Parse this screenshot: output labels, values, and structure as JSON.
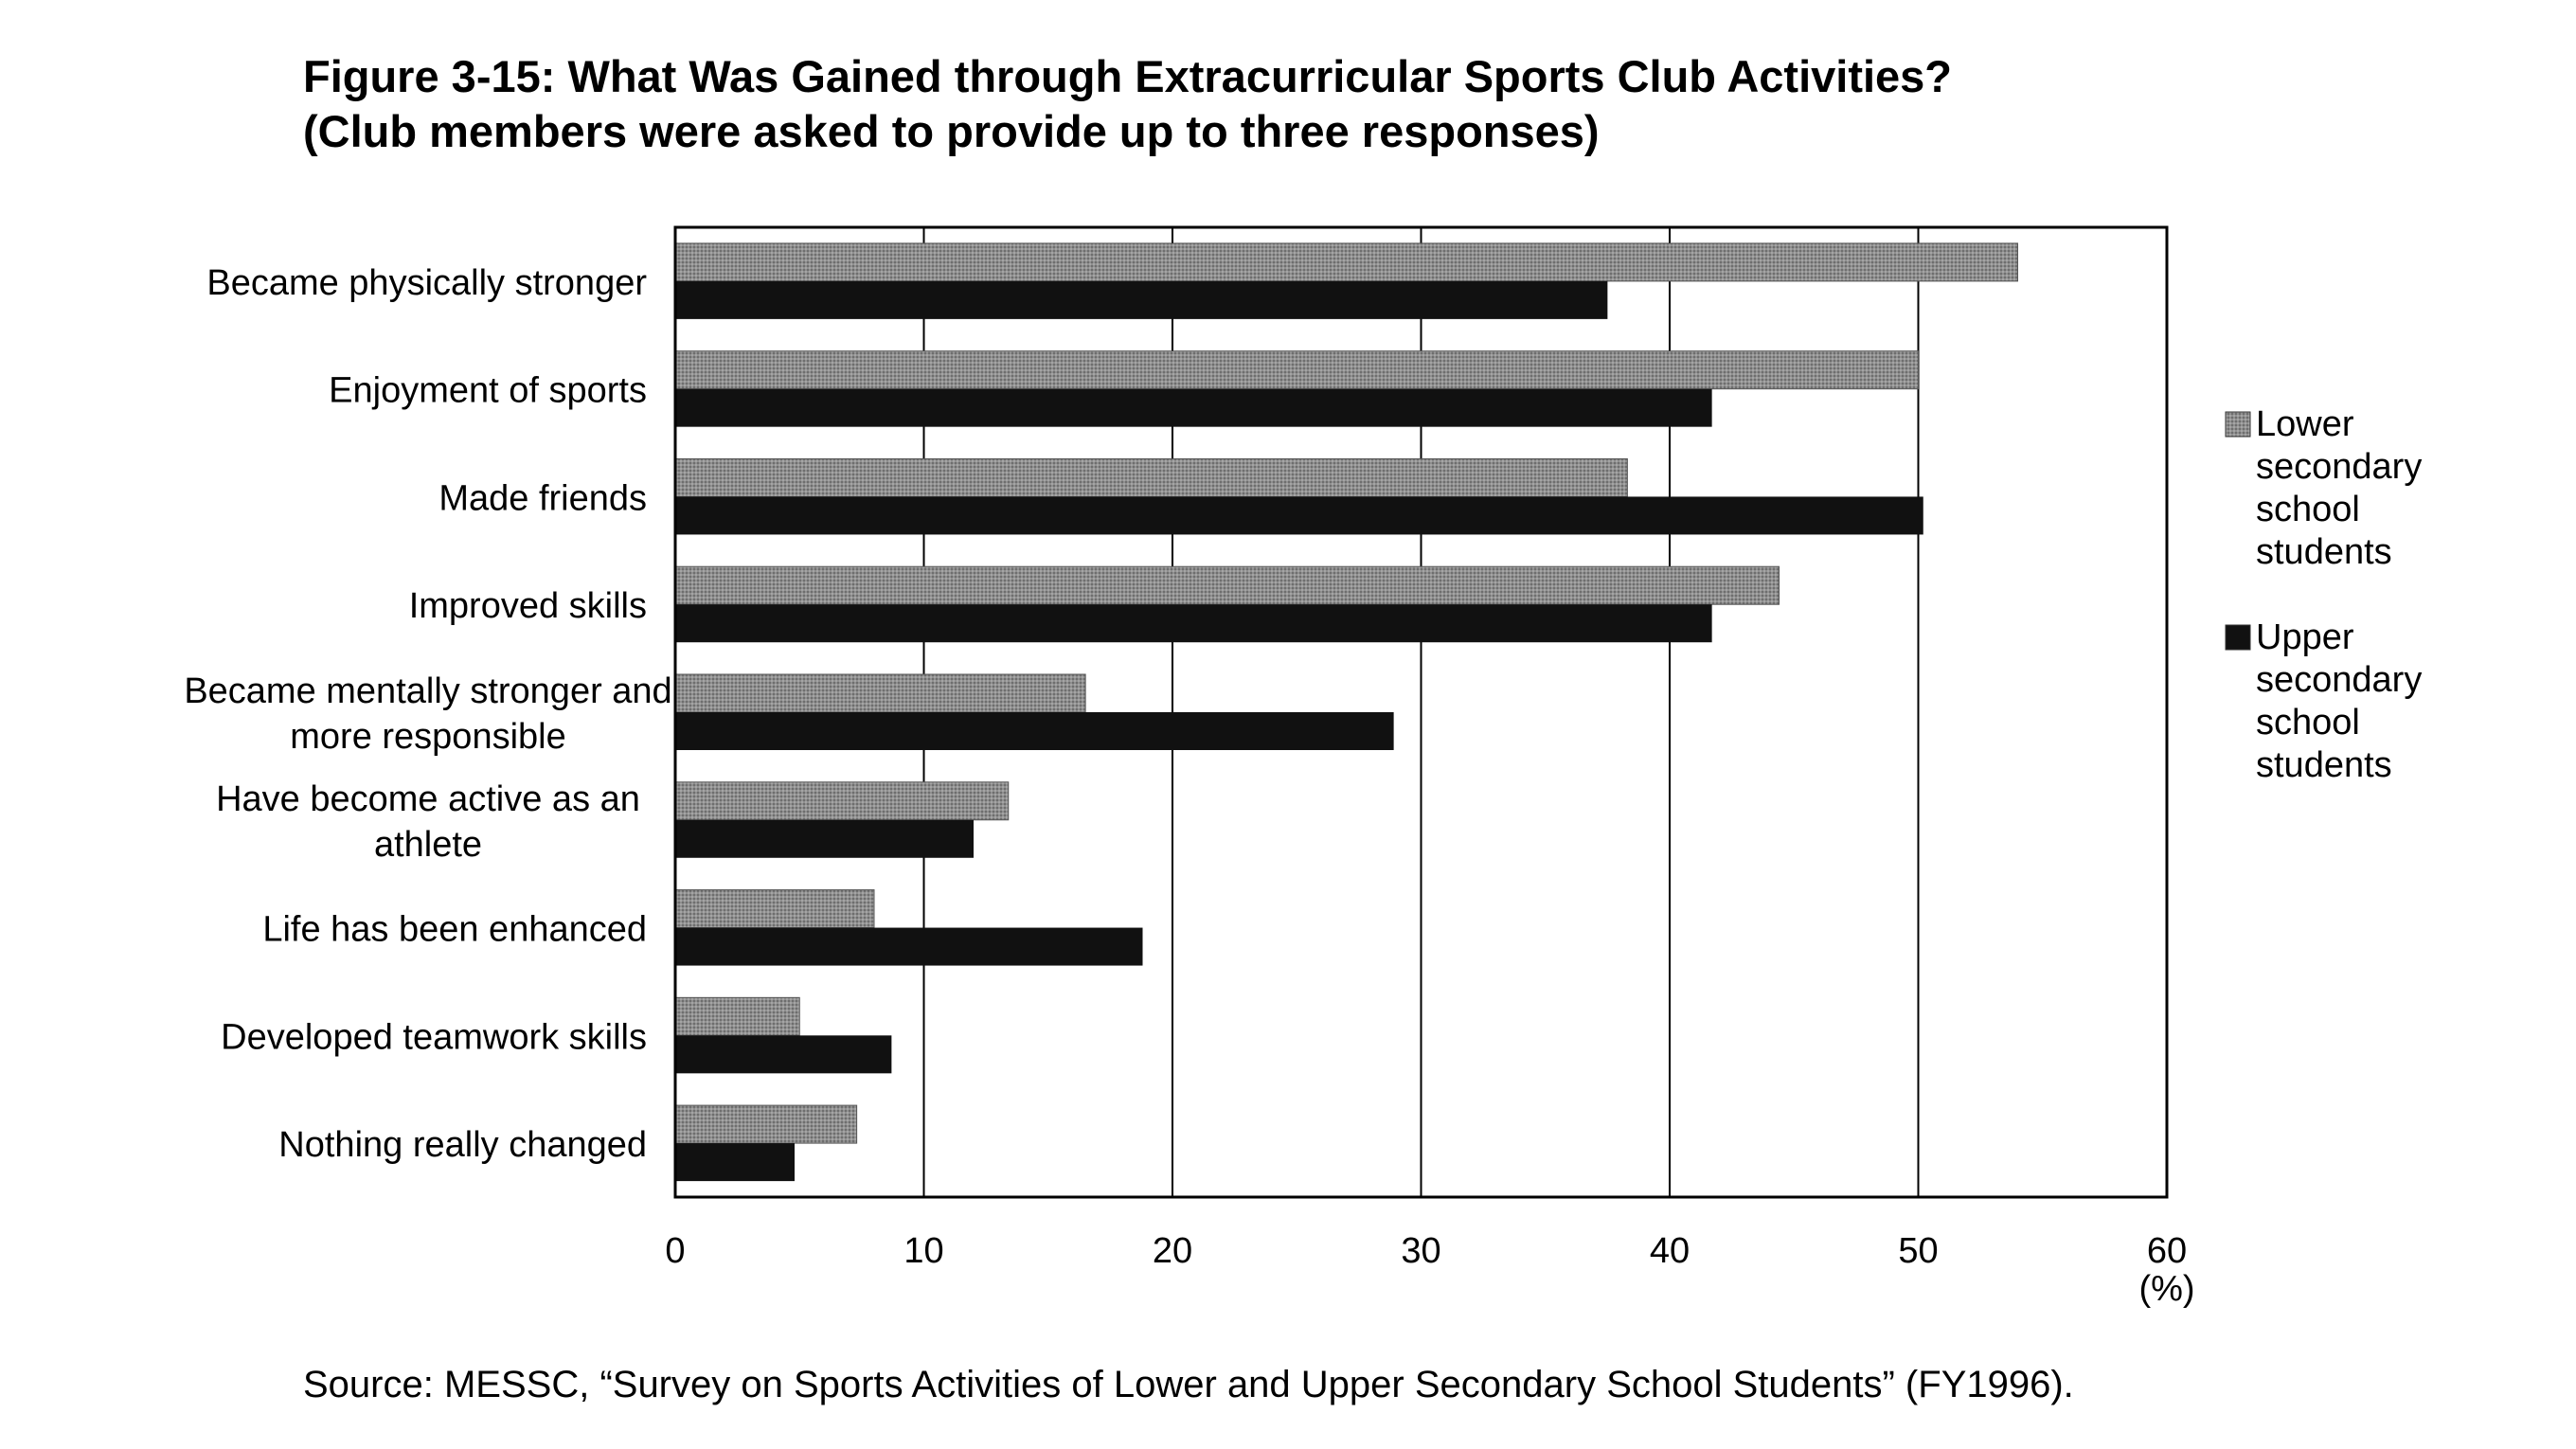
{
  "title_line1": "Figure 3-15: What Was Gained through Extracurricular Sports Club Activities?",
  "title_line2": "(Club members were asked to provide up to three responses)",
  "source": "Source: MESSC, “Survey on Sports Activities of Lower and Upper Secondary School Students” (FY1996).",
  "chart_data": {
    "type": "bar",
    "orientation": "horizontal",
    "categories": [
      [
        "Became physically stronger"
      ],
      [
        "Enjoyment of sports"
      ],
      [
        "Made friends"
      ],
      [
        "Improved skills"
      ],
      [
        "Became mentally stronger and",
        "more responsible"
      ],
      [
        "Have become active as an",
        "athlete"
      ],
      [
        "Life has been enhanced"
      ],
      [
        "Developed teamwork skills"
      ],
      [
        "Nothing really changed"
      ]
    ],
    "series": [
      {
        "name": [
          "Lower",
          "secondary",
          "school",
          "students"
        ],
        "values": [
          54,
          50,
          38.3,
          44.4,
          16.5,
          13.4,
          8,
          5,
          7.3
        ],
        "color": "#8a8a8a"
      },
      {
        "name": [
          "Upper",
          "secondary",
          "school",
          "students"
        ],
        "values": [
          37.5,
          41.7,
          50.2,
          41.7,
          28.9,
          12,
          18.8,
          8.7,
          4.8
        ],
        "color": "#111111"
      }
    ],
    "xlim": [
      0,
      60
    ],
    "xticks": [
      "0",
      "10",
      "20",
      "30",
      "40",
      "50",
      "60"
    ],
    "xunit": "(%)",
    "grid": true,
    "legend": "right"
  }
}
